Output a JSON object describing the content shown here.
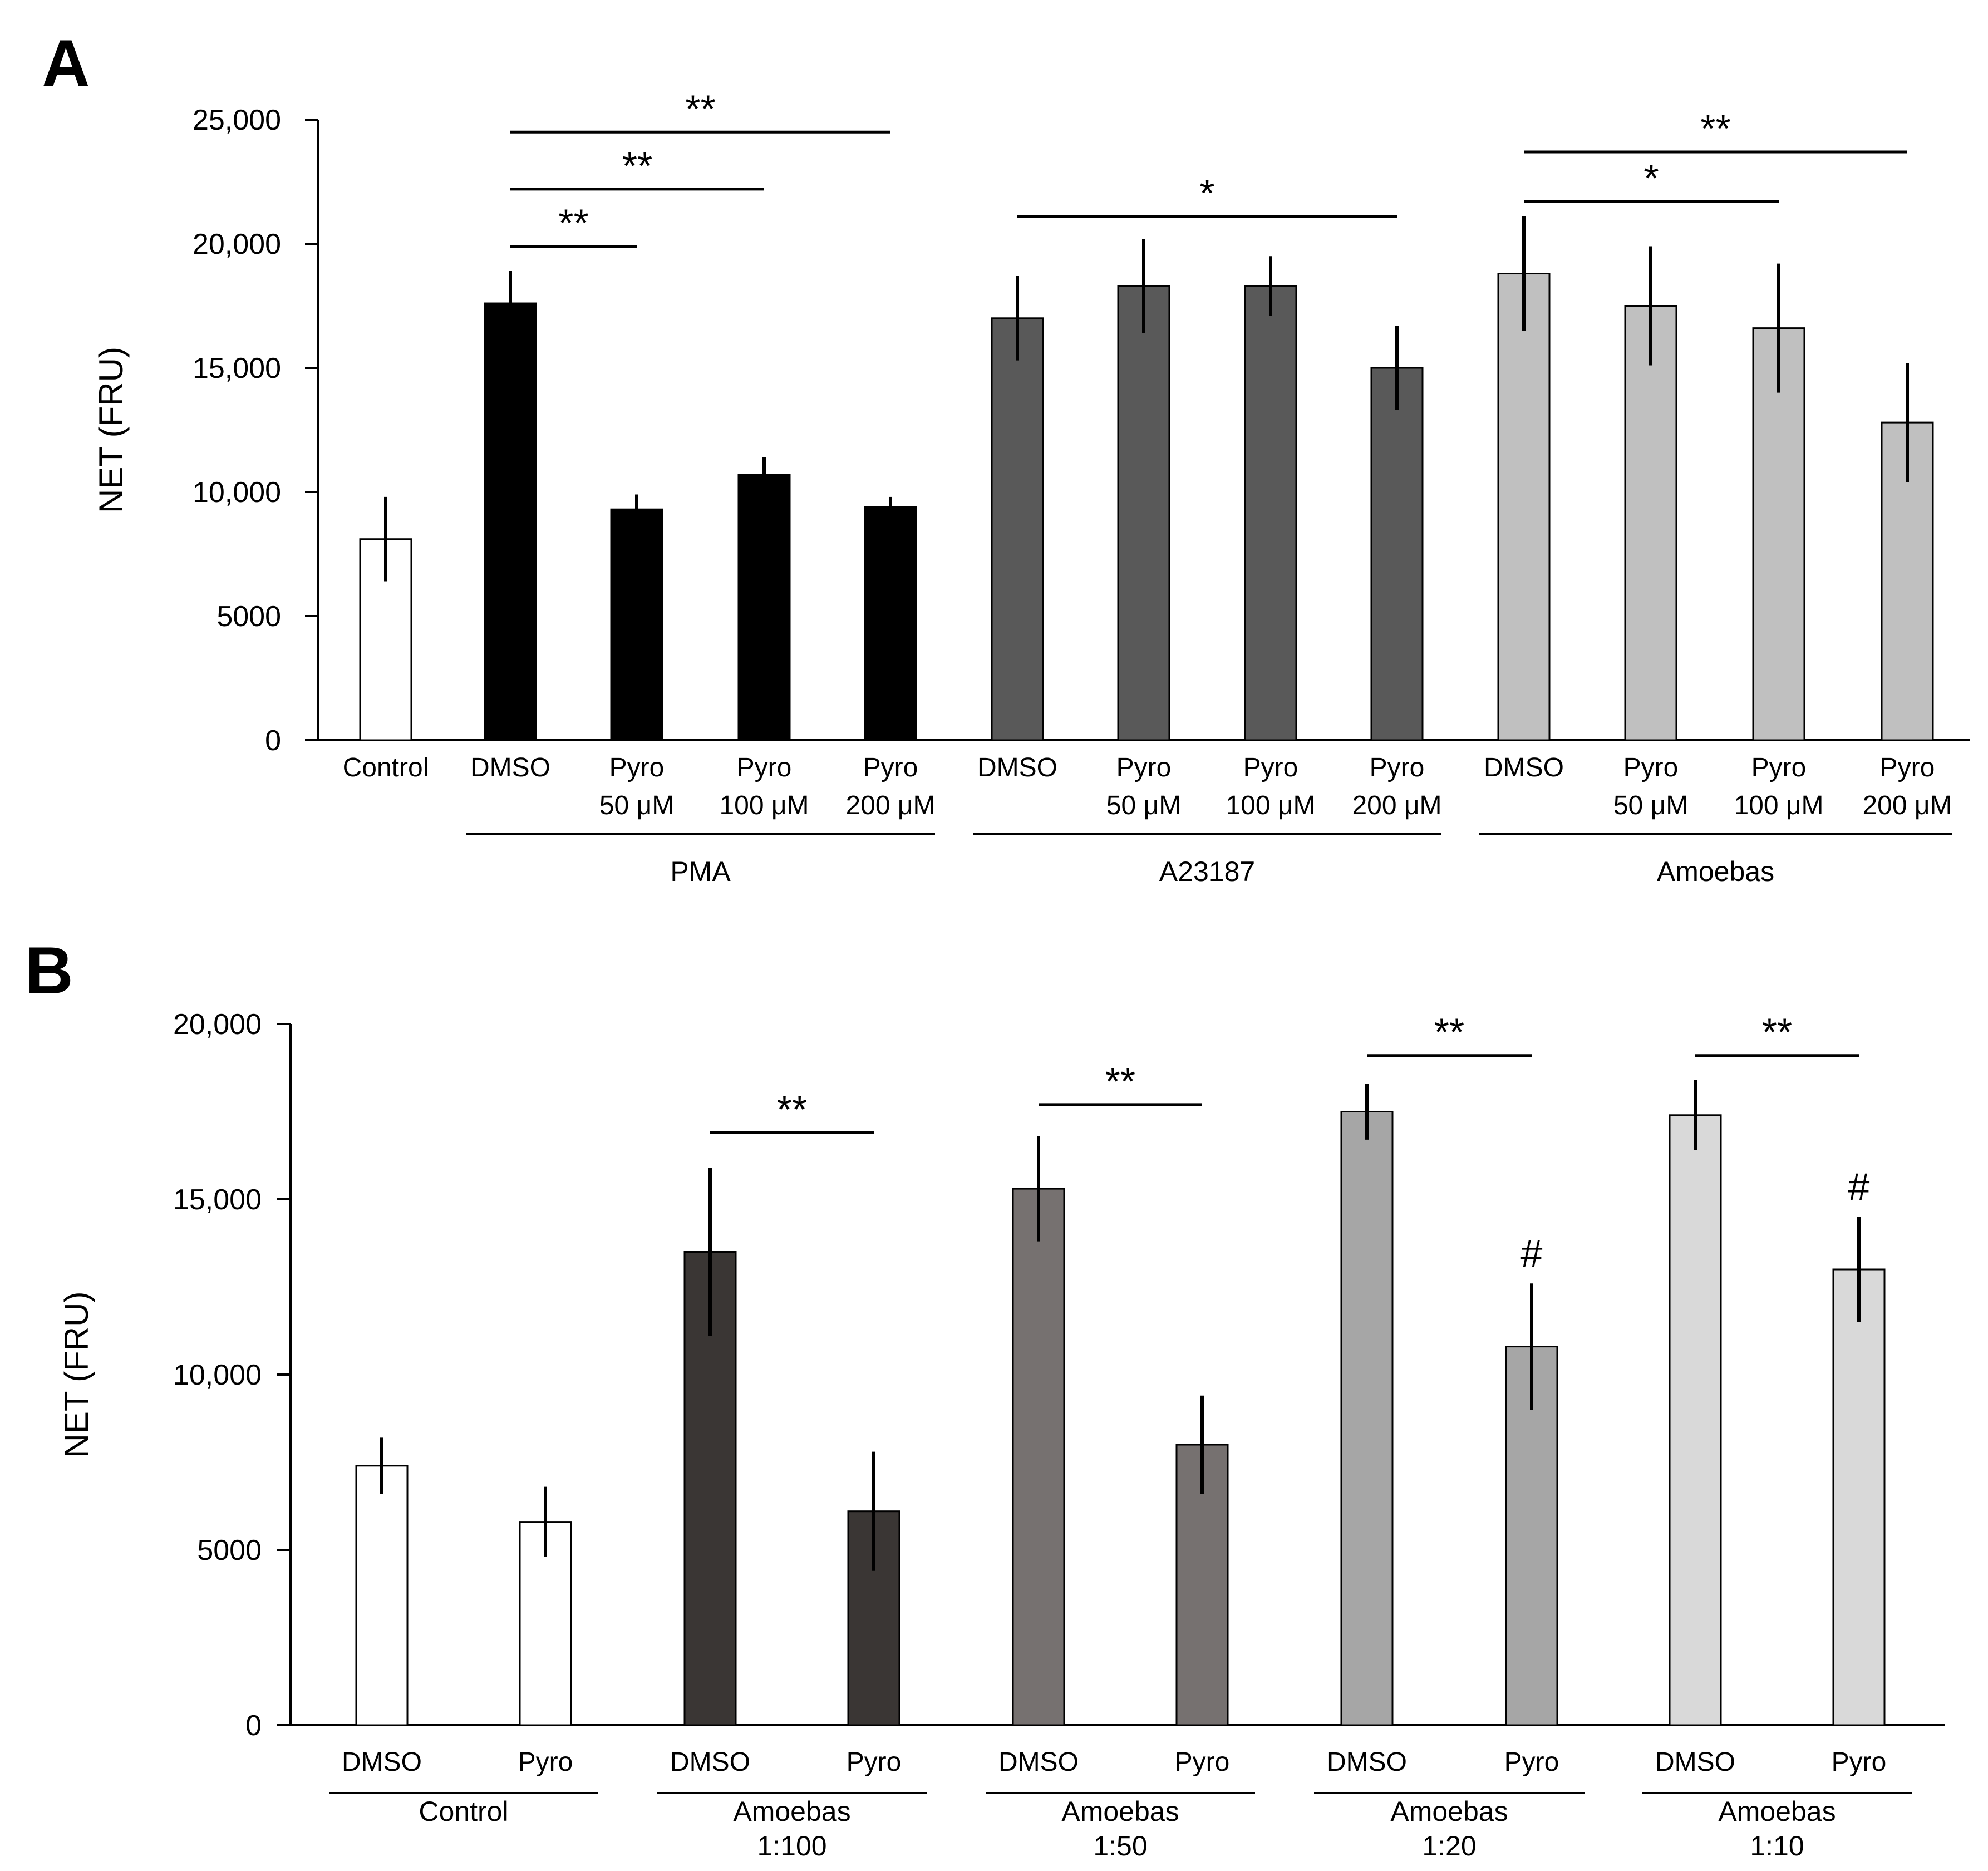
{
  "chart_data": [
    {
      "panel": "A",
      "type": "bar",
      "ylabel": "NET (FRU)",
      "ylim": [
        0,
        25000
      ],
      "yticks": [
        {
          "value": 0,
          "label": "0"
        },
        {
          "value": 5000,
          "label": "5000"
        },
        {
          "value": 10000,
          "label": "10,000"
        },
        {
          "value": 15000,
          "label": "15,000"
        },
        {
          "value": 20000,
          "label": "20,000"
        },
        {
          "value": 25000,
          "label": "25,000"
        }
      ],
      "categories": [
        [
          "Control"
        ],
        [
          "DMSO"
        ],
        [
          "Pyro",
          "50 μM"
        ],
        [
          "Pyro",
          "100 μM"
        ],
        [
          "Pyro",
          "200 μM"
        ],
        [
          "DMSO"
        ],
        [
          "Pyro",
          "50 μM"
        ],
        [
          "Pyro",
          "100 μM"
        ],
        [
          "Pyro",
          "200 μM"
        ],
        [
          "DMSO"
        ],
        [
          "Pyro",
          "50 μM"
        ],
        [
          "Pyro",
          "100 μM"
        ],
        [
          "Pyro",
          "200 μM"
        ]
      ],
      "values": [
        8100,
        17600,
        9300,
        10700,
        9400,
        17000,
        18300,
        18300,
        15000,
        18800,
        17500,
        16600,
        12800
      ],
      "errors": [
        1700,
        1300,
        600,
        700,
        400,
        1700,
        1900,
        1200,
        1700,
        2300,
        2400,
        2600,
        2400
      ],
      "colors": [
        "#ffffff",
        "#000000",
        "#000000",
        "#000000",
        "#000000",
        "#595959",
        "#595959",
        "#595959",
        "#595959",
        "#c0c0c0",
        "#c0c0c0",
        "#c0c0c0",
        "#c0c0c0"
      ],
      "groups": [
        {
          "label": "PMA",
          "from": 1,
          "to": 4
        },
        {
          "label": "A23187",
          "from": 5,
          "to": 8
        },
        {
          "label": "Amoebas",
          "from": 9,
          "to": 12
        }
      ],
      "significance": [
        {
          "from": 1,
          "to": 2,
          "y": 19900,
          "label": "**"
        },
        {
          "from": 1,
          "to": 3,
          "y": 22200,
          "label": "**"
        },
        {
          "from": 1,
          "to": 4,
          "y": 24500,
          "label": "**"
        },
        {
          "from": 5,
          "to": 8,
          "y": 21100,
          "label": "*"
        },
        {
          "from": 9,
          "to": 11,
          "y": 21700,
          "label": "*"
        },
        {
          "from": 9,
          "to": 12,
          "y": 23700,
          "label": "**"
        }
      ],
      "markers": []
    },
    {
      "panel": "B",
      "type": "bar",
      "ylabel": "NET (FRU)",
      "ylim": [
        0,
        20000
      ],
      "yticks": [
        {
          "value": 0,
          "label": "0"
        },
        {
          "value": 5000,
          "label": "5000"
        },
        {
          "value": 10000,
          "label": "10,000"
        },
        {
          "value": 15000,
          "label": "15,000"
        },
        {
          "value": 20000,
          "label": "20,000"
        }
      ],
      "categories": [
        [
          "DMSO"
        ],
        [
          "Pyro"
        ],
        [
          "DMSO"
        ],
        [
          "Pyro"
        ],
        [
          "DMSO"
        ],
        [
          "Pyro"
        ],
        [
          "DMSO"
        ],
        [
          "Pyro"
        ],
        [
          "DMSO"
        ],
        [
          "Pyro"
        ]
      ],
      "values": [
        7400,
        5800,
        13500,
        6100,
        15300,
        8000,
        17500,
        10800,
        17400,
        13000
      ],
      "errors": [
        800,
        1000,
        2400,
        1700,
        1500,
        1400,
        800,
        1800,
        1000,
        1500
      ],
      "colors": [
        "#ffffff",
        "#ffffff",
        "#3a3634",
        "#3a3634",
        "#767170",
        "#767170",
        "#a6a6a6",
        "#a6a6a6",
        "#d9d9d9",
        "#d9d9d9"
      ],
      "groups": [
        {
          "label": [
            "Control"
          ],
          "from": 0,
          "to": 1
        },
        {
          "label": [
            "Amoebas",
            "1:100"
          ],
          "from": 2,
          "to": 3
        },
        {
          "label": [
            "Amoebas",
            "1:50"
          ],
          "from": 4,
          "to": 5
        },
        {
          "label": [
            "Amoebas",
            "1:20"
          ],
          "from": 6,
          "to": 7
        },
        {
          "label": [
            "Amoebas",
            "1:10"
          ],
          "from": 8,
          "to": 9
        }
      ],
      "significance": [
        {
          "from": 2,
          "to": 3,
          "y": 16900,
          "label": "**"
        },
        {
          "from": 4,
          "to": 5,
          "y": 17700,
          "label": "**"
        },
        {
          "from": 6,
          "to": 7,
          "y": 19100,
          "label": "**"
        },
        {
          "from": 8,
          "to": 9,
          "y": 19100,
          "label": "**"
        }
      ],
      "markers": [
        {
          "index": 7,
          "label": "#"
        },
        {
          "index": 9,
          "label": "#"
        }
      ]
    }
  ],
  "panel_letters": [
    "A",
    "B"
  ]
}
